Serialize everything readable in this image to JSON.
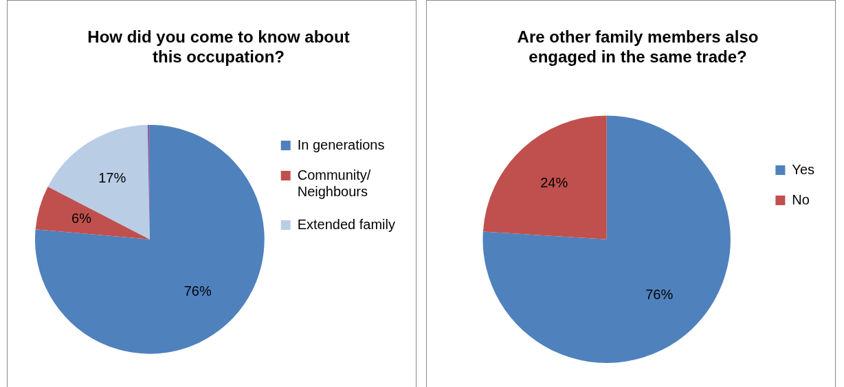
{
  "chart_data": [
    {
      "type": "pie",
      "title": "How did you come to know about this occupation?",
      "categories": [
        "In generations",
        "Community/ Neighbours",
        "Extended family",
        null
      ],
      "values": [
        76.4,
        6.2,
        17.1,
        0.3
      ],
      "colors": [
        "#4f81bd",
        "#c0504d",
        "#b9cde5",
        "#8064a2"
      ],
      "value_labels": [
        "76%",
        "6%",
        "17%",
        null
      ],
      "legend": "right"
    },
    {
      "type": "pie",
      "title": "Are other family members also engaged in the same trade?",
      "categories": [
        "Yes",
        "No"
      ],
      "values": [
        76,
        24
      ],
      "colors": [
        "#4f81bd",
        "#c0504d"
      ],
      "value_labels": [
        "76%",
        "24%"
      ],
      "legend": "right"
    }
  ]
}
